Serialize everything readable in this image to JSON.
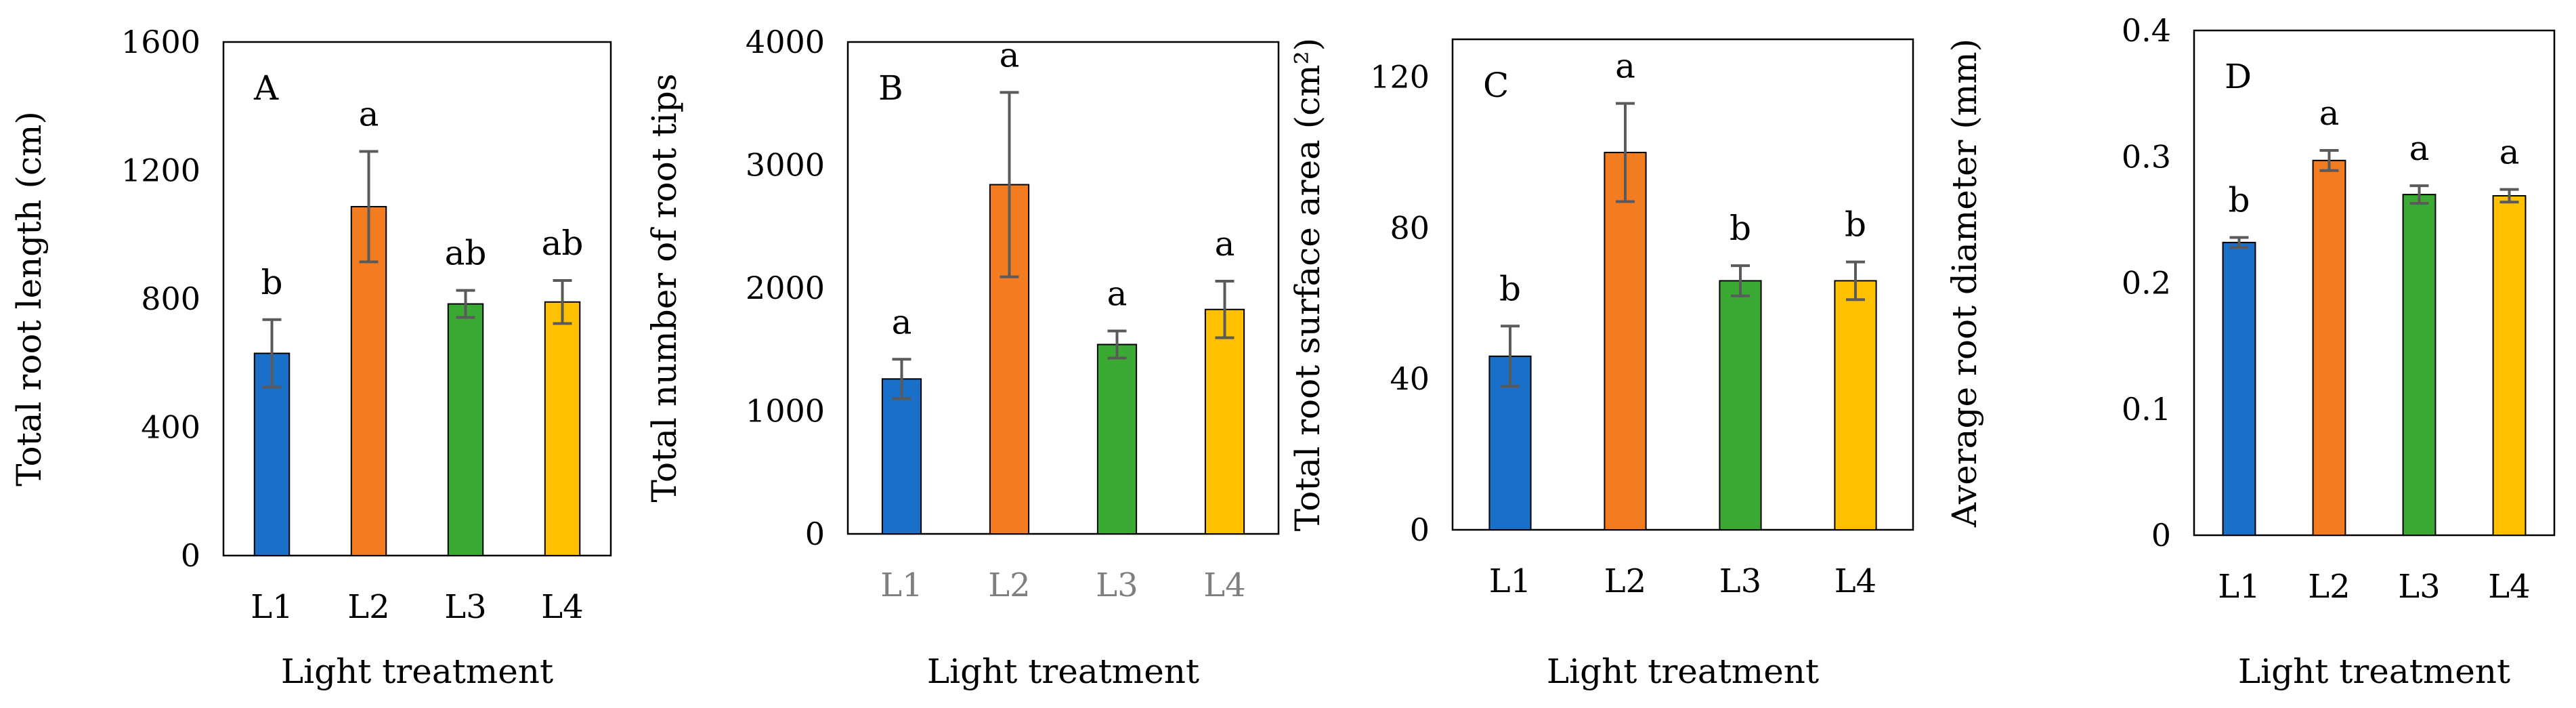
{
  "chart_data": [
    {
      "type": "bar",
      "panel_label": "A",
      "ylabel": "Total root length (cm)",
      "xlabel": "Light treatment",
      "categories": [
        "L1",
        "L2",
        "L3",
        "L4"
      ],
      "values": [
        630,
        1087,
        784,
        790
      ],
      "errors": [
        105,
        172,
        42,
        67
      ],
      "significance": [
        "b",
        "a",
        "ab",
        "ab"
      ],
      "ylim": [
        0,
        1600
      ],
      "yticks": [
        0,
        400,
        800,
        1200,
        1600
      ],
      "ytick_labels": [
        "0",
        "400",
        "800",
        "1200",
        "1600"
      ],
      "colors": [
        "#1a70c8",
        "#f47c20",
        "#3aaa35",
        "#ffc000"
      ],
      "tick_label_color": "#000000",
      "grid": false
    },
    {
      "type": "bar",
      "panel_label": "B",
      "ylabel": "Total number of root tips",
      "xlabel": "Light treatment",
      "categories": [
        "L1",
        "L2",
        "L3",
        "L4"
      ],
      "values": [
        1260,
        2840,
        1540,
        1825
      ],
      "errors": [
        160,
        750,
        110,
        230
      ],
      "significance": [
        "a",
        "a",
        "a",
        "a"
      ],
      "ylim": [
        0,
        4000
      ],
      "yticks": [
        0,
        1000,
        2000,
        3000,
        4000
      ],
      "ytick_labels": [
        "0",
        "1000",
        "2000",
        "3000",
        "4000"
      ],
      "colors": [
        "#1a70c8",
        "#f47c20",
        "#3aaa35",
        "#ffc000"
      ],
      "tick_label_color": "#7f7f7f",
      "grid": false
    },
    {
      "type": "bar",
      "panel_label": "C",
      "ylabel": "Total root surface area (cm²)",
      "xlabel": "Light treatment",
      "categories": [
        "L1",
        "L2",
        "L3",
        "L4"
      ],
      "values": [
        46,
        100,
        66,
        66
      ],
      "errors": [
        8,
        13,
        4,
        5
      ],
      "significance": [
        "b",
        "a",
        "b",
        "b"
      ],
      "ylim": [
        0,
        130
      ],
      "yticks": [
        0,
        40,
        80,
        120
      ],
      "ytick_labels": [
        "0",
        "40",
        "80",
        "120"
      ],
      "colors": [
        "#1a70c8",
        "#f47c20",
        "#3aaa35",
        "#ffc000"
      ],
      "tick_label_color": "#000000",
      "grid": false
    },
    {
      "type": "bar",
      "panel_label": "D",
      "ylabel": "Average root diameter (mm)",
      "xlabel": "Light treatment",
      "categories": [
        "L1",
        "L2",
        "L3",
        "L4"
      ],
      "values": [
        0.232,
        0.297,
        0.27,
        0.269
      ],
      "errors": [
        0.004,
        0.008,
        0.007,
        0.005
      ],
      "significance": [
        "b",
        "a",
        "a",
        "a"
      ],
      "ylim": [
        0,
        0.4
      ],
      "yticks": [
        0,
        0.1,
        0.2,
        0.3,
        0.4
      ],
      "ytick_labels": [
        "0",
        "0.1",
        "0.2",
        "0.3",
        "0.4"
      ],
      "colors": [
        "#1a70c8",
        "#f47c20",
        "#3aaa35",
        "#ffc000"
      ],
      "tick_label_color": "#000000",
      "grid": false
    }
  ]
}
